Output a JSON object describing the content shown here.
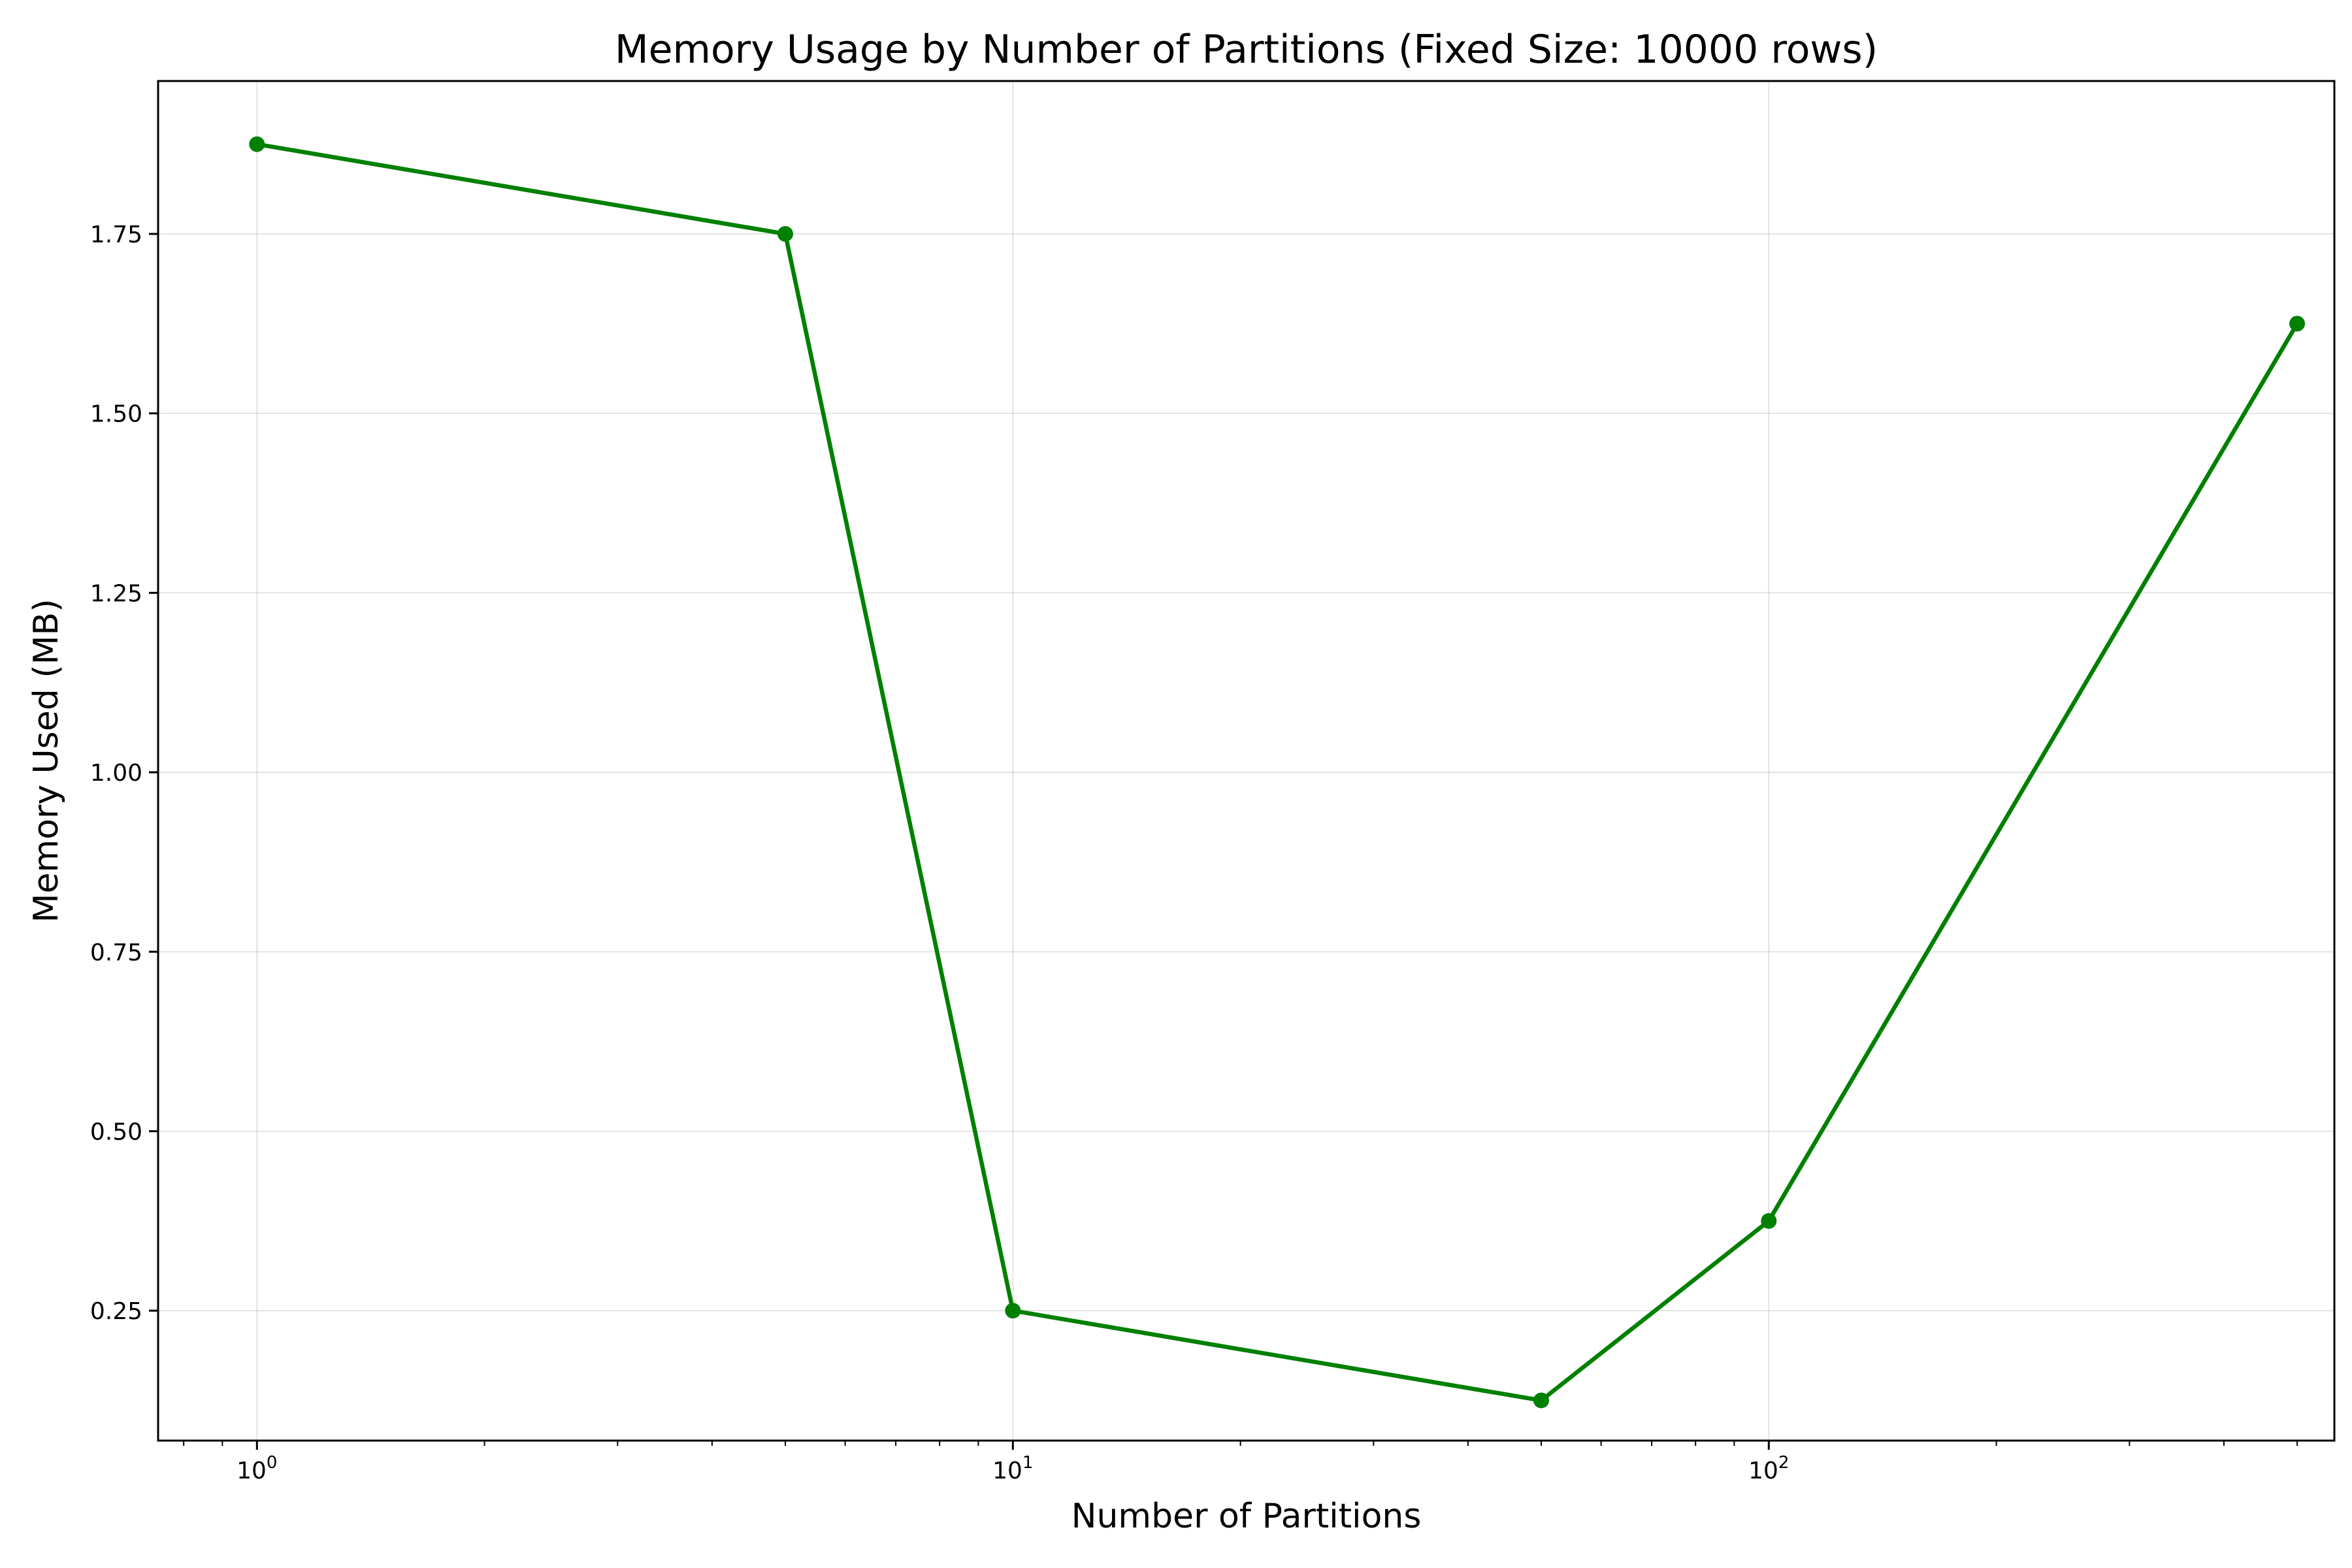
{
  "chart_data": {
    "type": "line",
    "title": "Memory Usage by Number of Partitions (Fixed Size: 10000 rows)",
    "xlabel": "Number of Partitions",
    "ylabel": "Memory Used (MB)",
    "xscale": "log",
    "xlim": [
      0.74,
      560
    ],
    "ylim": [
      0.069,
      1.963
    ],
    "grid": true,
    "color": "#008000",
    "x_ticks": [
      {
        "value": 1,
        "base": "10",
        "exp": "0"
      },
      {
        "value": 10,
        "base": "10",
        "exp": "1"
      },
      {
        "value": 100,
        "base": "10",
        "exp": "2"
      }
    ],
    "y_ticks": [
      {
        "value": 0.25,
        "label": "0.25"
      },
      {
        "value": 0.5,
        "label": "0.50"
      },
      {
        "value": 0.75,
        "label": "0.75"
      },
      {
        "value": 1.0,
        "label": "1.00"
      },
      {
        "value": 1.25,
        "label": "1.25"
      },
      {
        "value": 1.5,
        "label": "1.50"
      },
      {
        "value": 1.75,
        "label": "1.75"
      }
    ],
    "series": [
      {
        "x": [
          1,
          5,
          10,
          50,
          100,
          500
        ],
        "y": [
          1.875,
          1.75,
          0.25,
          0.125,
          0.375,
          1.625
        ]
      }
    ]
  }
}
